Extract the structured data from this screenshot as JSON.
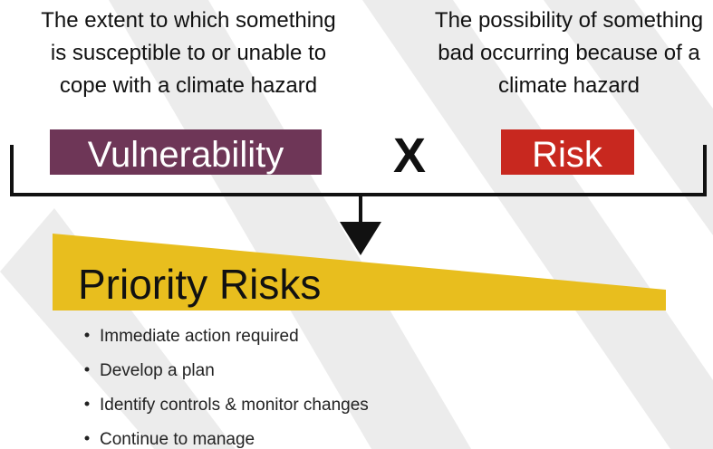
{
  "left_term": {
    "description": [
      "The extent to which something",
      "is susceptible to or unable to",
      "cope with a climate hazard"
    ],
    "label": "Vulnerability"
  },
  "operator": "X",
  "right_term": {
    "description": [
      "The possibility of something",
      "bad occurring because of a",
      "climate hazard"
    ],
    "label": "Risk"
  },
  "result": {
    "title": "Priority Risks",
    "bullets": [
      "Immediate action required",
      "Develop a plan",
      "Identify controls & monitor changes",
      "Continue to manage"
    ]
  }
}
